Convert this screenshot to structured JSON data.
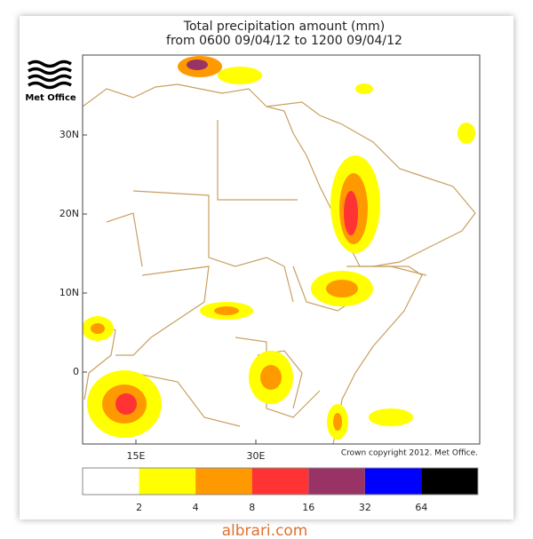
{
  "title": [
    "Total precipitation amount (mm)",
    "from 0600 09/04/12 to 1200 09/04/12"
  ],
  "logo": "Met Office",
  "lat_labels": [
    "30N",
    "20N",
    "10N",
    "0"
  ],
  "lon_labels": [
    "15E",
    "30E"
  ],
  "copyright": "Crown copyright 2012. Met Office.",
  "legend": {
    "colors": [
      "#ffffff",
      "#ffff00",
      "#ff9900",
      "#ff3333",
      "#993366",
      "#0000ff",
      "#000000"
    ],
    "ticks": [
      2,
      4,
      8,
      16,
      32,
      64
    ]
  },
  "watermark": "albrari.com"
}
